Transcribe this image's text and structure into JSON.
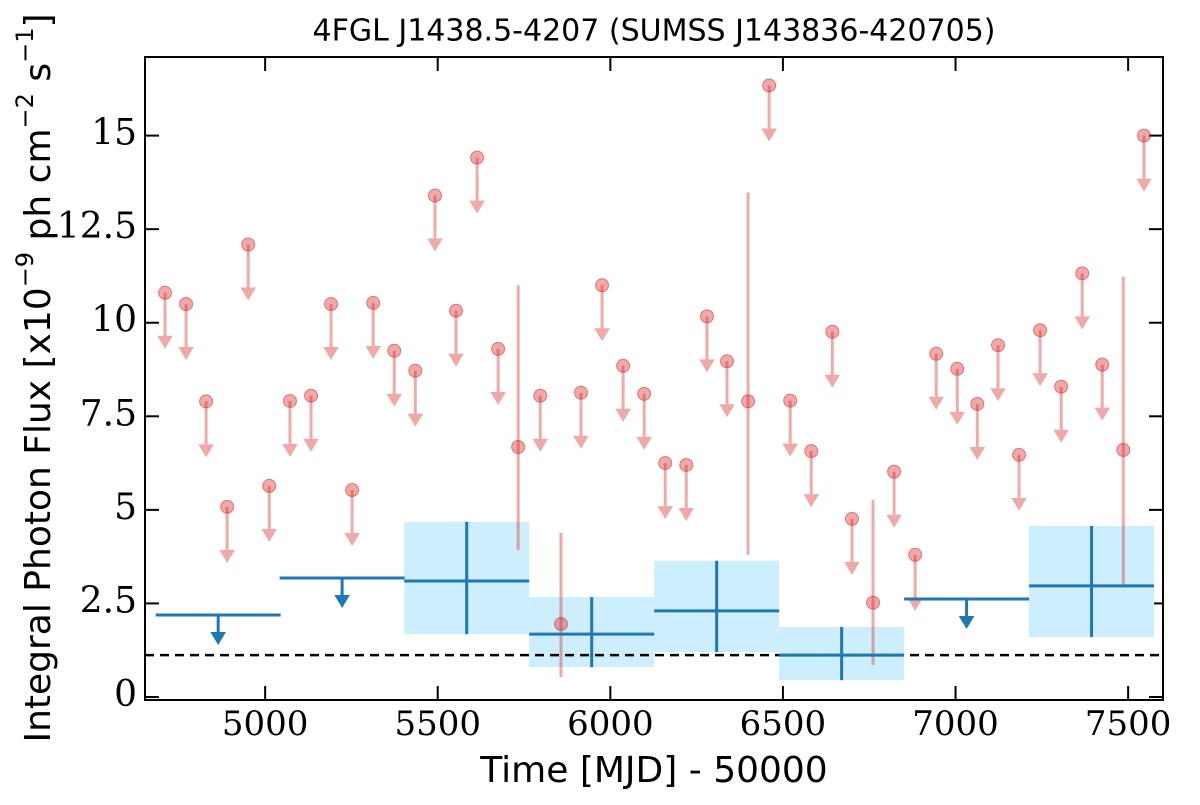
{
  "chart_data": {
    "type": "lightcurve",
    "title": "4FGL J1438.5-4207 (SUMSS J143836-420705)",
    "xlabel": "Time [MJD] - 50000",
    "ylabel": [
      {
        "text": "Integral Photon Flux [x10"
      },
      {
        "text": "−9",
        "sup": true
      },
      {
        "text": " ph cm"
      },
      {
        "text": "−2",
        "sup": true
      },
      {
        "text": " s"
      },
      {
        "text": "−1",
        "sup": true
      },
      {
        "text": "]"
      }
    ],
    "xlim": [
      4652,
      7601
    ],
    "ylim": [
      -0.08,
      17.1
    ],
    "xticks": [
      5000,
      5500,
      6000,
      6500,
      7000,
      7500
    ],
    "yticks": [
      0,
      2.5,
      5,
      7.5,
      10,
      12.5,
      15
    ],
    "hline": {
      "y": 1.12,
      "color": "#000000",
      "dashed": true
    },
    "series": [
      {
        "color": "#d62728",
        "alpha": 0.4,
        "x": [
          4710,
          4771,
          4829,
          4890,
          4951,
          5012,
          5072,
          5133,
          5191,
          5252,
          5313,
          5374,
          5435,
          5492,
          5553,
          5614,
          5675,
          5733,
          5797,
          5857,
          5915,
          5976,
          6037,
          6098,
          6159,
          6220,
          6280,
          6338,
          6399,
          6460,
          6521,
          6582,
          6643,
          6700,
          6761,
          6822,
          6883,
          6944,
          7005,
          7063,
          7123,
          7184,
          7245,
          7306,
          7367,
          7425,
          7486,
          7546
        ],
        "values": [
          10.8,
          10.5,
          7.9,
          5.08,
          12.09,
          5.64,
          7.91,
          8.05,
          10.5,
          5.53,
          10.53,
          9.25,
          8.72,
          13.4,
          10.32,
          14.41,
          9.3,
          6.68,
          8.05,
          1.95,
          8.13,
          11.0,
          8.85,
          8.1,
          6.25,
          6.2,
          10.17,
          8.97,
          7.9,
          16.34,
          7.92,
          6.57,
          9.76,
          4.76,
          2.52,
          6.02,
          3.8,
          9.17,
          8.77,
          7.83,
          9.4,
          6.47,
          9.8,
          8.29,
          11.32,
          8.88,
          6.6,
          15.0
        ],
        "upper_limits": [
          true,
          true,
          true,
          true,
          true,
          true,
          true,
          true,
          true,
          true,
          true,
          true,
          true,
          true,
          true,
          true,
          true,
          false,
          true,
          false,
          true,
          true,
          true,
          true,
          true,
          true,
          true,
          true,
          false,
          true,
          true,
          true,
          true,
          true,
          false,
          true,
          true,
          true,
          true,
          true,
          true,
          true,
          true,
          true,
          true,
          true,
          false,
          true
        ],
        "yerr_minus": [
          null,
          null,
          null,
          null,
          null,
          null,
          null,
          null,
          null,
          null,
          null,
          null,
          null,
          null,
          null,
          null,
          null,
          2.75,
          null,
          1.42,
          null,
          null,
          null,
          null,
          null,
          null,
          null,
          null,
          4.1,
          null,
          null,
          null,
          null,
          null,
          1.66,
          null,
          null,
          null,
          null,
          null,
          null,
          null,
          null,
          null,
          null,
          null,
          3.66,
          null
        ],
        "yerr_plus": [
          null,
          null,
          null,
          null,
          null,
          null,
          null,
          null,
          null,
          null,
          null,
          null,
          null,
          null,
          null,
          null,
          null,
          4.32,
          null,
          2.44,
          null,
          null,
          null,
          null,
          null,
          null,
          null,
          null,
          5.58,
          null,
          null,
          null,
          null,
          null,
          2.75,
          null,
          null,
          null,
          null,
          null,
          null,
          null,
          null,
          null,
          null,
          null,
          4.63,
          null
        ]
      },
      {
        "color": "#1f77b4",
        "fill": "#cdeefc",
        "x": [
          4864,
          5223,
          5584,
          5946,
          6308,
          6670,
          7032,
          7394
        ],
        "xerr": [
          181,
          181,
          181,
          181,
          181,
          181,
          181,
          181
        ],
        "values": [
          2.19,
          3.18,
          3.1,
          1.68,
          2.3,
          1.12,
          2.62,
          2.97
        ],
        "upper_limits": [
          true,
          true,
          false,
          false,
          false,
          false,
          true,
          false
        ],
        "yerr_minus": [
          null,
          null,
          1.42,
          0.88,
          1.1,
          0.67,
          null,
          1.37
        ],
        "yerr_plus": [
          null,
          null,
          1.58,
          0.99,
          1.34,
          0.75,
          null,
          1.6
        ]
      }
    ]
  }
}
